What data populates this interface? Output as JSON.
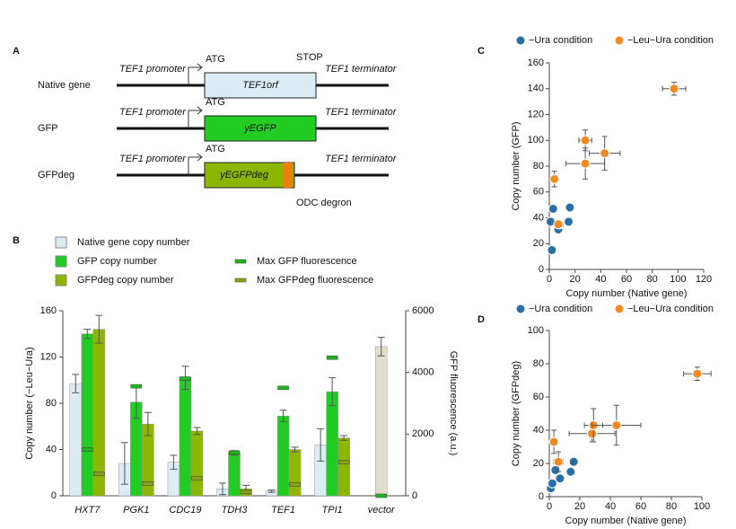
{
  "diagram": {
    "label": "A",
    "degron": "ODC degron",
    "rows": [
      {
        "name": "Native gene",
        "promoter": "TEF1 promoter",
        "start": "ATG",
        "gene": "TEF1orf",
        "stop": "STOP",
        "terminator": "TEF1 terminator",
        "color": "#dcecf4"
      },
      {
        "name": "GFP",
        "promoter": "TEF1 promoter",
        "start": "ATG",
        "gene": "yEGFP",
        "terminator": "TEF1 terminator",
        "color": "#22cc22"
      },
      {
        "name": "GFPdeg",
        "promoter": "TEF1 promoter",
        "start": "ATG",
        "gene": "yEGFPdeg",
        "terminator": "TEF1 terminator",
        "color": "#8db600",
        "degron_color": "#f07d10"
      }
    ]
  },
  "chart_data": [
    {
      "type": "bar",
      "panel": "B",
      "categories": [
        "HXT7",
        "PGK1",
        "CDC19",
        "TDH3",
        "TEF1",
        "TPI1",
        "vector"
      ],
      "ylabel": "Copy number (−Leu−Ura)",
      "y2label": "GFP fluorescence (a.u.)",
      "ylim": [
        0,
        160
      ],
      "yticks": [
        0,
        40,
        80,
        120,
        160
      ],
      "y2lim": [
        0,
        6000
      ],
      "y2ticks": [
        0,
        2000,
        4000,
        6000
      ],
      "series": [
        {
          "name": "Native gene copy number",
          "color": "#dcecf4",
          "colors": [
            "#dcecf4",
            "#dcecf4",
            "#dcecf4",
            "#dcecf4",
            "#dcecf4",
            "#dcecf4",
            "#e3dccb"
          ],
          "values": [
            97,
            28,
            29,
            6,
            4,
            44,
            129
          ],
          "errors": [
            8,
            18,
            6,
            5,
            1,
            14,
            8
          ]
        },
        {
          "name": "GFP copy number",
          "color": "#22cc22",
          "values": [
            140,
            81,
            102,
            37,
            69,
            90,
            null
          ],
          "errors": [
            4,
            14,
            10,
            2,
            5,
            12,
            null
          ]
        },
        {
          "name": "GFPdeg copy number",
          "color": "#8db600",
          "values": [
            144,
            62,
            56,
            6,
            40,
            50,
            null
          ],
          "errors": [
            12,
            10,
            3,
            3,
            2,
            2,
            null
          ]
        },
        {
          "name": "Max GFP fluorescence",
          "color": "#1db81d",
          "axis": "y2",
          "marker": "dash",
          "values": [
            1500,
            3550,
            3800,
            1400,
            3500,
            4480,
            0
          ]
        },
        {
          "name": "Max GFPdeg fluorescence",
          "color": "#8aa21a",
          "axis": "y2",
          "marker": "dash",
          "values": [
            720,
            400,
            560,
            120,
            360,
            1100,
            null
          ]
        }
      ]
    },
    {
      "type": "scatter",
      "panel": "C",
      "xlabel": "Copy number (Native gene)",
      "ylabel": "Copy number (GFP)",
      "xlim": [
        0,
        120
      ],
      "xticks": [
        0,
        20,
        40,
        60,
        80,
        100,
        120
      ],
      "ylim": [
        0,
        160
      ],
      "yticks": [
        0,
        20,
        40,
        60,
        80,
        100,
        120,
        140,
        160
      ],
      "series": [
        {
          "name": "−Ura condition",
          "color": "#2a6ea6",
          "x": [
            1,
            2,
            3,
            7,
            15,
            16,
            8
          ],
          "y": [
            37,
            15,
            47,
            31,
            37,
            48,
            35
          ]
        },
        {
          "name": "−Leu−Ura condition",
          "color": "#f08a24",
          "x": [
            4,
            7,
            28,
            28,
            43,
            97
          ],
          "y": [
            70,
            35,
            100,
            82,
            90,
            140
          ],
          "xerr": [
            2,
            3,
            5,
            15,
            12,
            9
          ],
          "yerr": [
            6,
            3,
            8,
            12,
            13,
            5
          ]
        }
      ]
    },
    {
      "type": "scatter",
      "panel": "D",
      "xlabel": "Copy number (Native gene)",
      "ylabel": "Copy number (GFPdeg)",
      "xlim": [
        0,
        100
      ],
      "xticks": [
        0,
        20,
        40,
        60,
        80,
        100
      ],
      "ylim": [
        0,
        100
      ],
      "yticks": [
        0,
        20,
        40,
        60,
        80,
        100
      ],
      "series": [
        {
          "name": "−Ura condition",
          "color": "#2a6ea6",
          "x": [
            1,
            2,
            4,
            7,
            14,
            16
          ],
          "y": [
            5,
            8,
            16,
            11,
            15,
            21
          ]
        },
        {
          "name": "−Leu−Ura condition",
          "color": "#f08a24",
          "x": [
            3,
            6,
            28,
            29,
            44,
            97
          ],
          "y": [
            33,
            21,
            38,
            43,
            43,
            74
          ],
          "xerr": [
            2,
            3,
            15,
            6,
            16,
            9
          ],
          "yerr": [
            7,
            6,
            5,
            10,
            12,
            4
          ]
        }
      ]
    }
  ]
}
